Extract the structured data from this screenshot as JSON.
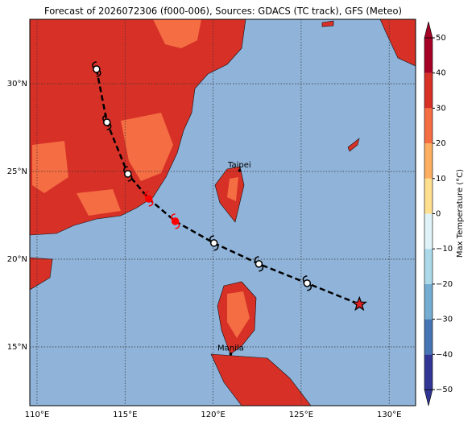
{
  "map": {
    "title": "Forecast of 2026072306 (f000-006), Sources: GDACS (TC track), GFS (Meteo)",
    "xlim": [
      109.59,
      131.5
    ],
    "ylim": [
      11.65,
      33.67
    ],
    "xticks": [
      {
        "value": 110,
        "label": "110°E"
      },
      {
        "value": 115,
        "label": "115°E"
      },
      {
        "value": 120,
        "label": "120°E"
      },
      {
        "value": 125,
        "label": "125°E"
      },
      {
        "value": 130,
        "label": "130°E"
      }
    ],
    "yticks": [
      {
        "value": 15,
        "label": "15°N"
      },
      {
        "value": 20,
        "label": "20°N"
      },
      {
        "value": 25,
        "label": "25°N"
      },
      {
        "value": 30,
        "label": "30°N"
      }
    ],
    "grid": true,
    "track": {
      "lon": [
        113.38,
        113.97,
        115.16,
        116.35,
        117.85,
        120.05,
        122.6,
        125.34,
        128.31
      ],
      "lat": [
        30.83,
        27.8,
        24.86,
        23.44,
        22.16,
        20.92,
        19.73,
        18.63,
        17.43
      ],
      "colors": [
        "#000000",
        "#000000",
        "#000000",
        "#ff0000",
        "#ff0000",
        "#000000",
        "#000000",
        "#000000",
        "#000000"
      ]
    },
    "cities": [
      {
        "name": "Taipei",
        "lon": 121.5,
        "lat": 25.05
      },
      {
        "name": "Manila",
        "lon": 121.0,
        "lat": 14.6
      }
    ],
    "colorbar": {
      "label": "Max Temperature (°C)",
      "lim": [
        -50,
        50
      ],
      "ticks": [
        {
          "value": -50,
          "label": "−50"
        },
        {
          "value": -40,
          "label": "−40"
        },
        {
          "value": -30,
          "label": "−30"
        },
        {
          "value": -20,
          "label": "−20"
        },
        {
          "value": -10,
          "label": "−10"
        },
        0,
        10,
        20,
        30,
        40,
        50
      ],
      "colors": [
        "#313695",
        "#4575b4",
        "#74add1",
        "#abd9e9",
        "#e0f3f8",
        "#fee090",
        "#fdae61",
        "#f46d43",
        "#d73027",
        "#a50026"
      ]
    }
  }
}
